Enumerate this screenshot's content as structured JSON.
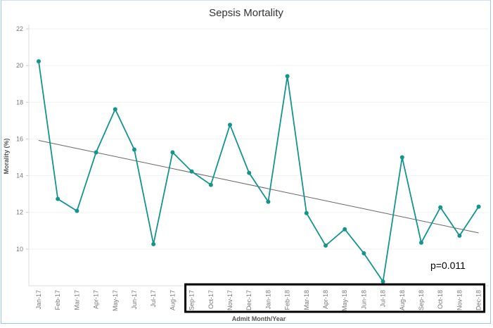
{
  "chart_data": {
    "type": "line",
    "title": "Sepsis Mortality",
    "xlabel": "Admit Month/Year",
    "ylabel": "Morality (%)",
    "ylim": [
      8,
      22
    ],
    "yticks": [
      10,
      12,
      14,
      16,
      18,
      20,
      22
    ],
    "grid": true,
    "categories": [
      "Jan-17",
      "Feb-17",
      "Mar-17",
      "Apr-17",
      "May-17",
      "Jun-17",
      "Jul-17",
      "Aug-17",
      "Sep-17",
      "Oct-17",
      "Nov-17",
      "Dec-17",
      "Jan-18",
      "Feb-18",
      "Mar-18",
      "Apr-18",
      "May-18",
      "Jun-18",
      "Jul-18",
      "Aug-18",
      "Sep-18",
      "Oct-18",
      "Nov-18",
      "Dec-18"
    ],
    "values": [
      20.23,
      12.73,
      12.08,
      15.27,
      17.62,
      15.42,
      10.27,
      15.27,
      14.23,
      13.5,
      16.77,
      14.15,
      12.58,
      19.42,
      11.96,
      10.19,
      11.08,
      9.77,
      8.23,
      15.0,
      10.35,
      12.27,
      10.73,
      12.31
    ],
    "trendline": {
      "start": 15.92,
      "end": 10.88,
      "color": "#666666"
    },
    "series_color": "#13948c",
    "annotation": "p=0.011",
    "highlight_box": {
      "from": "Sep-17",
      "to": "Dec-18",
      "color": "#000000"
    }
  }
}
